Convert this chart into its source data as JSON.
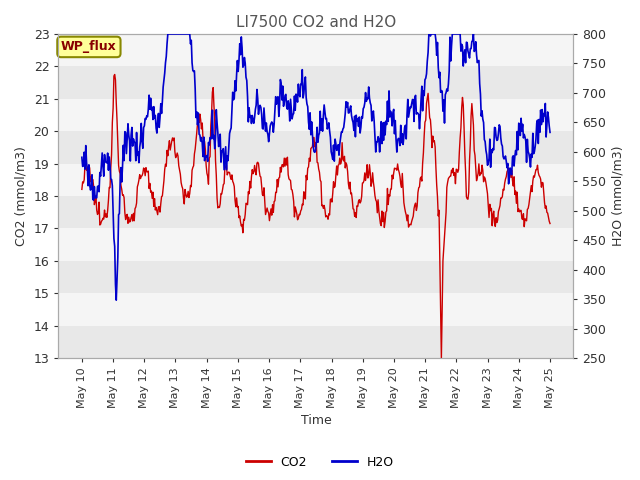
{
  "title": "LI7500 CO2 and H2O",
  "xlabel": "Time",
  "ylabel_left": "CO2 (mmol/m3)",
  "ylabel_right": "H2O (mmol/m3)",
  "ylim_left": [
    13.0,
    23.0
  ],
  "ylim_right": [
    250,
    800
  ],
  "yticks_left": [
    13.0,
    14.0,
    15.0,
    16.0,
    17.0,
    18.0,
    19.0,
    20.0,
    21.0,
    22.0,
    23.0
  ],
  "yticks_right": [
    250,
    300,
    350,
    400,
    450,
    500,
    550,
    600,
    650,
    700,
    750,
    800
  ],
  "co2_color": "#cc0000",
  "h2o_color": "#0000cc",
  "background_color": "#ffffff",
  "band_colors": [
    "#e8e8e8",
    "#f5f5f5"
  ],
  "annotation_text": "WP_flux",
  "annotation_bg": "#ffff99",
  "annotation_border": "#888800",
  "legend_co2": "CO2",
  "legend_h2o": "H2O",
  "n_points": 600,
  "title_fontsize": 11,
  "label_fontsize": 9,
  "tick_fontsize": 9
}
